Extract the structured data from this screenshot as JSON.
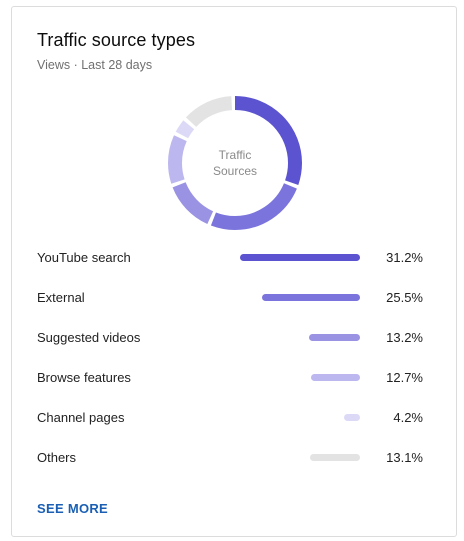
{
  "card": {
    "title": "Traffic source types",
    "subtitle": "Views · Last 28 days",
    "donut_label_line1": "Traffic",
    "donut_label_line2": "Sources",
    "see_more": "SEE MORE"
  },
  "chart_data": {
    "type": "donut+bar",
    "categories": [
      "YouTube search",
      "External",
      "Suggested videos",
      "Browse features",
      "Channel pages",
      "Others"
    ],
    "values": [
      31.2,
      25.5,
      13.2,
      12.7,
      4.2,
      13.1
    ],
    "labels": [
      "31.2%",
      "25.5%",
      "13.2%",
      "12.7%",
      "4.2%",
      "13.1%"
    ],
    "colors": [
      "#5b53cf",
      "#7b74dc",
      "#9a93e3",
      "#bcb7ee",
      "#dcd9f6",
      "#e3e3e3"
    ]
  }
}
